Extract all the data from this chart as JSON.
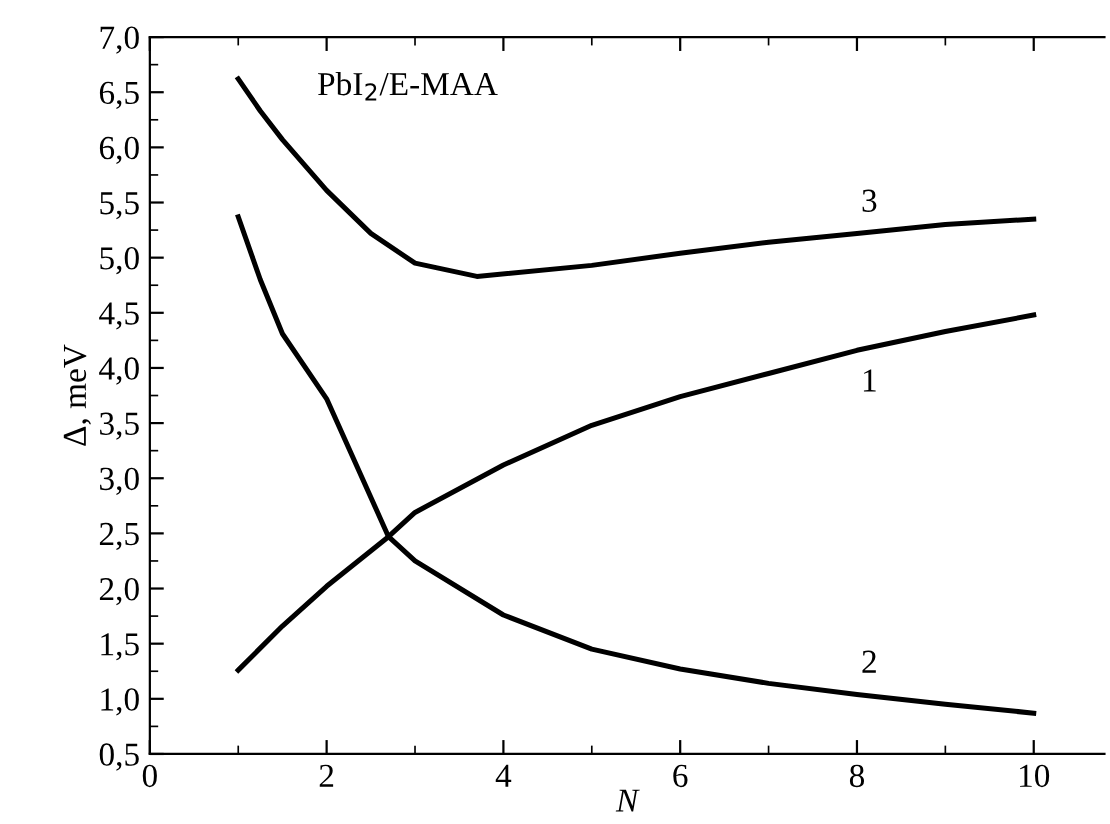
{
  "chart_data": {
    "type": "line",
    "xlabel": "N",
    "ylabel": "Δ, meV",
    "annotations": [
      "PbI$_{2}$/E-MAA"
    ],
    "xlim": [
      0,
      10.8
    ],
    "xticks": [
      0,
      2,
      4,
      6,
      8,
      10
    ],
    "ylim": [
      0.5,
      7.0
    ],
    "yticks": [
      {
        "value": 0.5,
        "label": "0,5"
      },
      {
        "value": 1.0,
        "label": "1,0"
      },
      {
        "value": 1.5,
        "label": "1,5"
      },
      {
        "value": 2.0,
        "label": "2,0"
      },
      {
        "value": 2.5,
        "label": "2,5"
      },
      {
        "value": 3.0,
        "label": "3,0"
      },
      {
        "value": 3.5,
        "label": "3,5"
      },
      {
        "value": 4.0,
        "label": "4,0"
      },
      {
        "value": 4.5,
        "label": "4,5"
      },
      {
        "value": 5.0,
        "label": "5,0"
      },
      {
        "value": 5.5,
        "label": "5,5"
      },
      {
        "value": 6.0,
        "label": "6,0"
      },
      {
        "value": 6.5,
        "label": "6,5"
      },
      {
        "value": 7.0,
        "label": "7,0"
      }
    ],
    "grid": false,
    "marker": "none",
    "line_style": "solid",
    "series": [
      {
        "name": "1",
        "color": "#000000",
        "x": [
          1,
          1.5,
          2,
          2.7,
          3,
          4,
          5,
          6,
          7,
          8,
          9,
          10
        ],
        "values": [
          1.26,
          1.66,
          2.02,
          2.47,
          2.69,
          3.12,
          3.48,
          3.74,
          3.95,
          4.16,
          4.33,
          4.48
        ]
      },
      {
        "name": "2",
        "color": "#000000",
        "x": [
          1,
          1.25,
          1.5,
          2,
          2.7,
          3,
          4,
          5,
          6,
          7,
          8,
          9,
          10
        ],
        "values": [
          5.37,
          4.8,
          4.31,
          3.72,
          2.47,
          2.25,
          1.76,
          1.45,
          1.27,
          1.14,
          1.04,
          0.95,
          0.87
        ]
      },
      {
        "name": "3",
        "color": "#000000",
        "x": [
          1,
          1.25,
          1.5,
          2,
          2.5,
          3,
          3.7,
          5,
          6,
          7,
          8,
          9,
          10
        ],
        "values": [
          6.62,
          6.33,
          6.07,
          5.61,
          5.22,
          4.95,
          4.83,
          4.93,
          5.04,
          5.14,
          5.22,
          5.3,
          5.35
        ]
      }
    ]
  }
}
